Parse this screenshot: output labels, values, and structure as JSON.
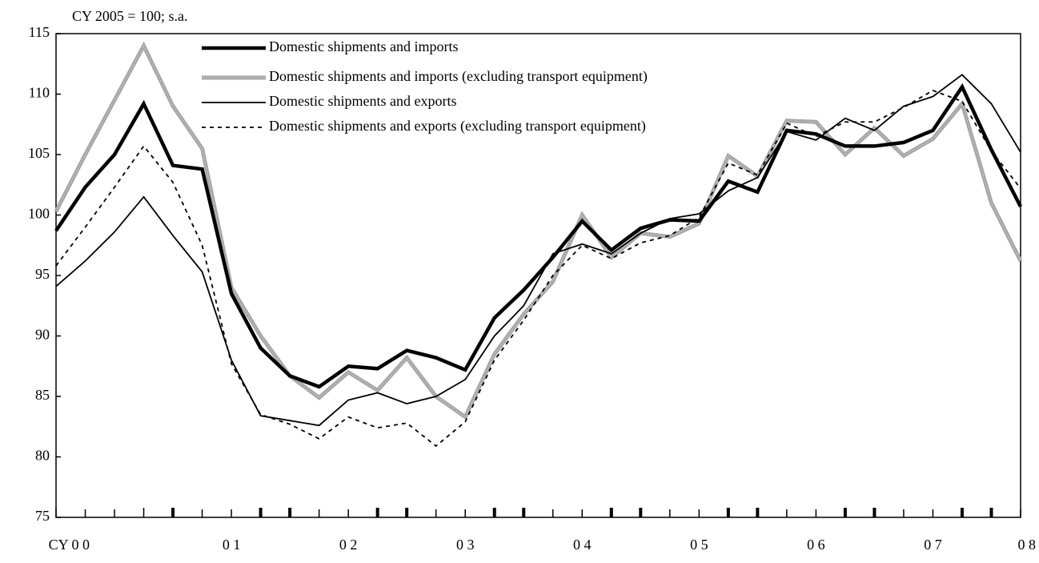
{
  "chart_data": {
    "type": "line",
    "y_label": "CY 2005 = 100; s.a.",
    "x_year_labels": [
      "CY 0 0",
      "0 1",
      "0 2",
      "0 3",
      "0 4",
      "0 5",
      "0 6",
      "0 7",
      "0 8"
    ],
    "ylim": [
      75,
      115
    ],
    "yticks": [
      75,
      80,
      85,
      90,
      95,
      100,
      105,
      110,
      115
    ],
    "series": [
      {
        "name": "Domestic shipments and imports",
        "color": "#000000",
        "style": "bold",
        "values": [
          98.7,
          102.3,
          105,
          109.2,
          104.1,
          103.8,
          93.5,
          89,
          86.7,
          85.8,
          87.5,
          87.3,
          88.8,
          88.2,
          87.2,
          91.5,
          93.8,
          96.5,
          99.5,
          97.1,
          98.9,
          99.6,
          99.5,
          102.8,
          101.9,
          107,
          106.7,
          105.7,
          105.7,
          106,
          107,
          110.6,
          105.4,
          100.7
        ]
      },
      {
        "name": "Domestic shipments and imports (excluding transport equipment)",
        "color": "#a6a6a6",
        "style": "hatched",
        "values": [
          100.3,
          105,
          109.5,
          114,
          109,
          105.5,
          94,
          90,
          86.7,
          84.9,
          87,
          85.5,
          88.2,
          85,
          83.3,
          88.5,
          91.8,
          94.5,
          100,
          96.5,
          98.5,
          98.2,
          99.3,
          104.9,
          103.2,
          107.8,
          107.7,
          105,
          107.2,
          104.9,
          106.3,
          109.2,
          101,
          96.2
        ]
      },
      {
        "name": "Domestic shipments and exports",
        "color": "#000000",
        "style": "thin",
        "values": [
          94.1,
          96.2,
          98.6,
          101.5,
          98.3,
          95.3,
          88,
          83.4,
          83,
          82.6,
          84.7,
          85.3,
          84.4,
          85,
          86.4,
          90,
          92.5,
          96.8,
          97.6,
          96.8,
          98.5,
          99.7,
          100.1,
          102,
          103.1,
          106.9,
          106.2,
          108,
          107,
          109,
          109.8,
          111.6,
          109.2,
          105.2
        ]
      },
      {
        "name": "Domestic shipments and exports (excluding transport equipment)",
        "color": "#000000",
        "style": "dashed",
        "values": [
          95.8,
          99,
          102.3,
          105.7,
          102.7,
          97.5,
          87.7,
          83.5,
          82.7,
          81.5,
          83.3,
          82.4,
          82.8,
          80.9,
          82.9,
          88,
          91.3,
          95,
          97.5,
          96.4,
          97.7,
          98.3,
          99.8,
          104.3,
          103.3,
          107.6,
          106.5,
          107.7,
          107.7,
          108.9,
          110.3,
          109.4,
          105.3,
          102.2
        ]
      }
    ]
  }
}
